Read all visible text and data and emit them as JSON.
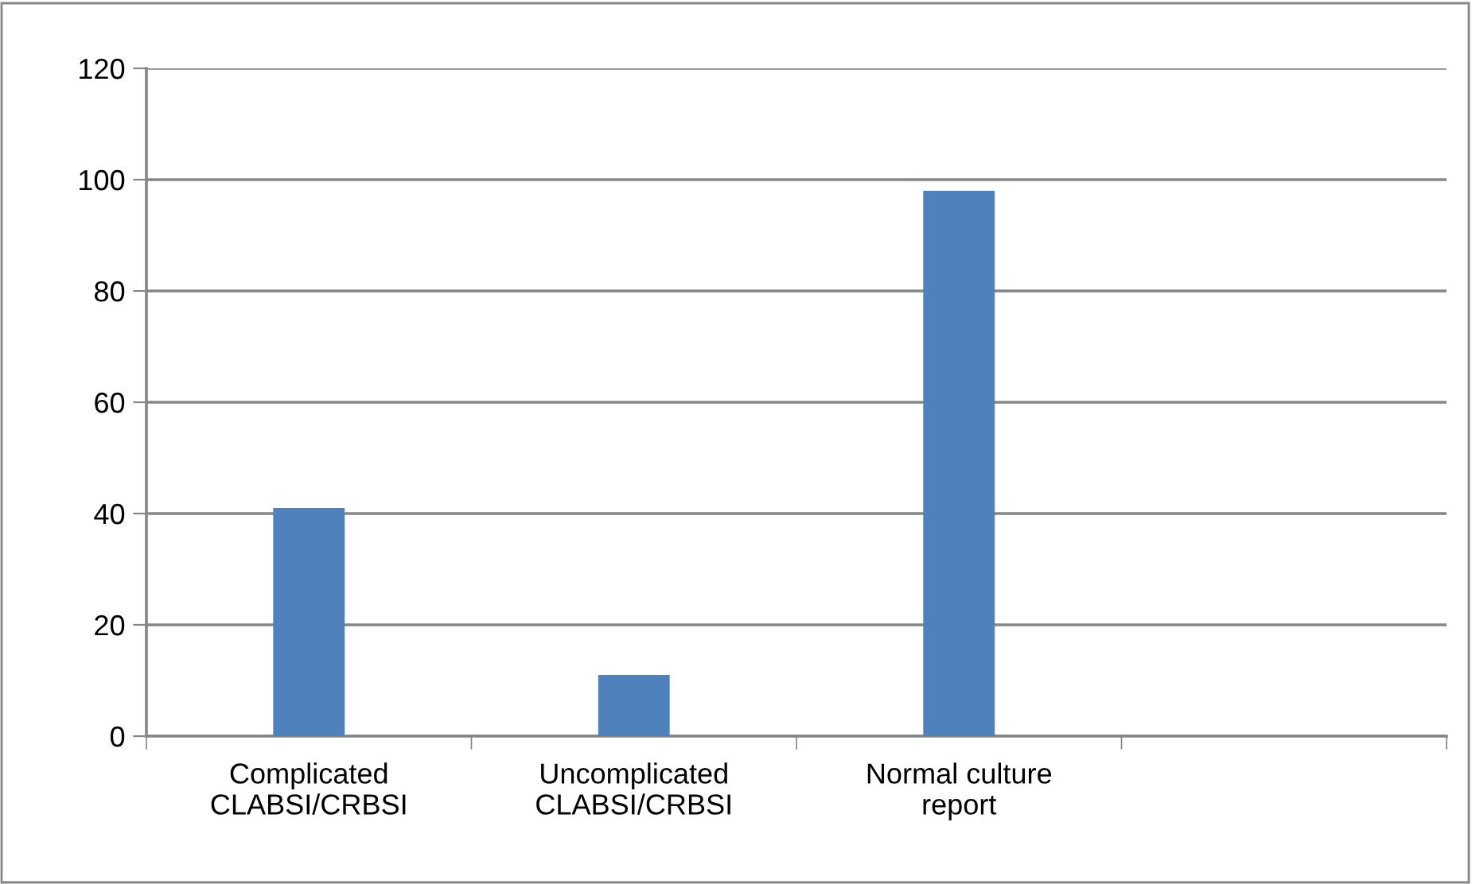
{
  "chart_data": {
    "type": "bar",
    "categories": [
      "Complicated\nCLABSI/CRBSI",
      "Uncomplicated\nCLABSI/CRBSI",
      "Normal culture\nreport",
      null
    ],
    "series": [
      {
        "color": "#4f81bd",
        "values": [
          41,
          11,
          98,
          null
        ]
      }
    ],
    "ylim": [
      0,
      120
    ],
    "yticks": [
      0,
      20,
      40,
      60,
      80,
      100,
      120
    ],
    "grid": "y"
  }
}
